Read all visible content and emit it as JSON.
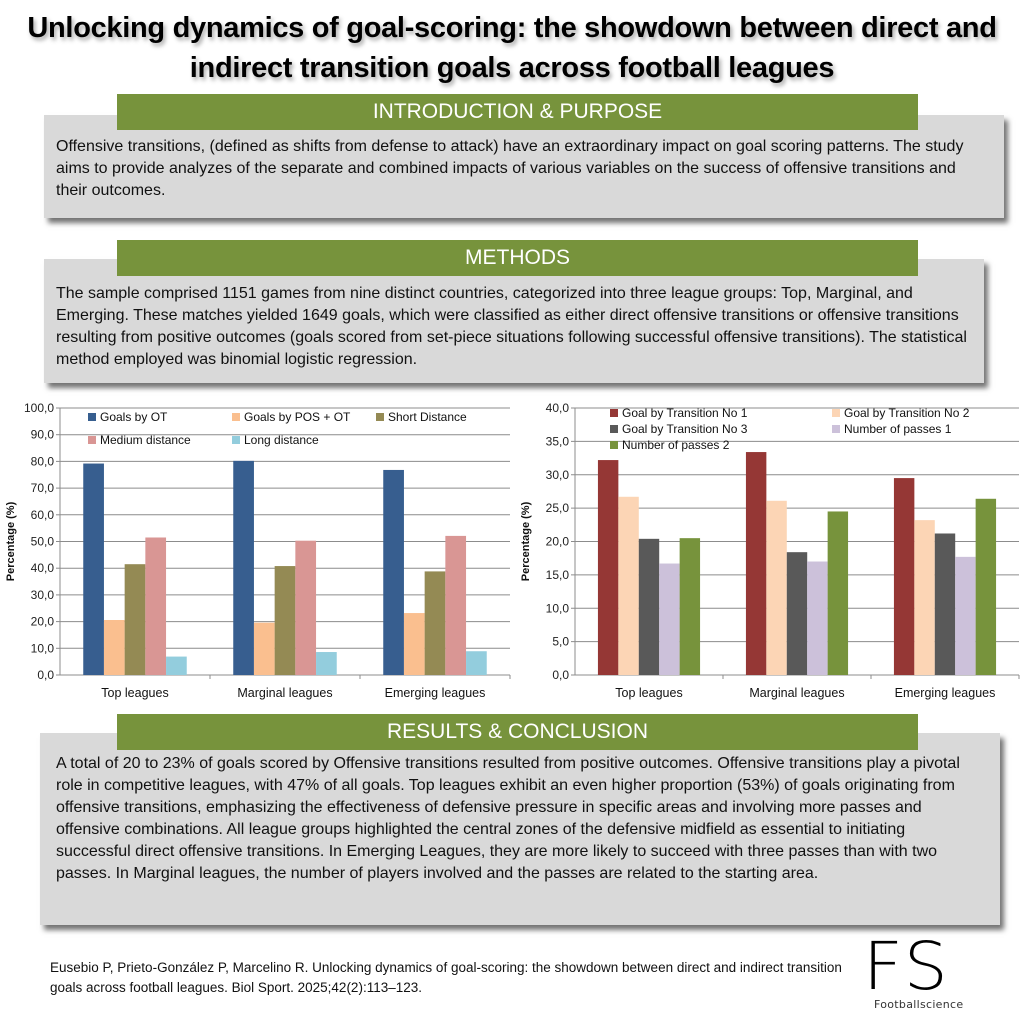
{
  "title": "Unlocking dynamics of goal-scoring: the showdown between direct and indirect transition goals across football leagues",
  "sections": {
    "introduction": {
      "heading": "INTRODUCTION & PURPOSE",
      "text": "Offensive transitions, (defined as shifts from defense to attack) have an extraordinary impact on goal scoring patterns. The study aims to provide analyzes of the separate and combined impacts of various variables on the success of offensive transitions and their outcomes."
    },
    "methods": {
      "heading": "METHODS",
      "text": "The sample comprised 1151 games from nine distinct countries, categorized into three league groups: Top, Marginal, and Emerging. These matches yielded 1649 goals, which were classified as either direct offensive transitions or offensive transitions resulting from positive outcomes (goals scored from set-piece situations following successful offensive transitions). The statistical method employed was binomial logistic regression."
    },
    "results": {
      "heading": "RESULTS & CONCLUSION",
      "text": "A total of 20 to 23% of goals scored by Offensive transitions resulted from positive outcomes. Offensive transitions play a pivotal role in competitive leagues, with 47% of all goals. Top leagues exhibit an even higher proportion (53%) of goals originating from offensive transitions, emphasizing the effectiveness of defensive pressure in specific areas and involving more passes and offensive combinations. All league groups highlighted the central zones of the defensive midfield as essential to initiating successful direct offensive transitions. In Emerging Leagues, they are more likely to succeed with three passes than with two passes. In Marginal leagues, the number of players involved and the passes are related to the starting area."
    }
  },
  "citation": "Eusebio P, Prieto-González P, Marcelino R. Unlocking dynamics of goal-scoring: the showdown between direct and indirect transition goals across football leagues. Biol Sport. 2025;42(2):113–123.",
  "logo": {
    "letters": "FS",
    "subtitle": "Footballscience"
  },
  "colors": {
    "banner": "#77933c",
    "panel": "#d9d9d9"
  },
  "chart_data": [
    {
      "type": "bar",
      "title": "",
      "xlabel": "",
      "ylabel": "Percentage (%)",
      "ylim": [
        0,
        100
      ],
      "yticks": [
        "0,0",
        "10,0",
        "20,0",
        "30,0",
        "40,0",
        "50,0",
        "60,0",
        "70,0",
        "80,0",
        "90,0",
        "100,0"
      ],
      "grid": true,
      "legend_position": "top-inside",
      "categories": [
        "Top leagues",
        "Marginal leagues",
        "Emerging leagues"
      ],
      "series": [
        {
          "name": "Goals by OT",
          "color": "#375e8f",
          "values": [
            79.2,
            80.2,
            76.8
          ]
        },
        {
          "name": "Goals by POS + OT",
          "color": "#fabf8f",
          "values": [
            20.6,
            19.6,
            23.2
          ]
        },
        {
          "name": "Short Distance",
          "color": "#948a54",
          "values": [
            41.5,
            40.8,
            38.8
          ]
        },
        {
          "name": "Medium distance",
          "color": "#d99694",
          "values": [
            51.5,
            50.3,
            52.1
          ]
        },
        {
          "name": "Long distance",
          "color": "#93cddd",
          "values": [
            6.9,
            8.6,
            8.9
          ]
        }
      ]
    },
    {
      "type": "bar",
      "title": "",
      "xlabel": "",
      "ylabel": "Percentage (%)",
      "ylim": [
        0,
        40
      ],
      "yticks": [
        "0,0",
        "5,0",
        "10,0",
        "15,0",
        "20,0",
        "25,0",
        "30,0",
        "35,0",
        "40,0"
      ],
      "grid": true,
      "legend_position": "top-inside",
      "categories": [
        "Top leagues",
        "Marginal leagues",
        "Emerging leagues"
      ],
      "series": [
        {
          "name": "Goal by Transition No 1",
          "color": "#953735",
          "values": [
            32.2,
            33.4,
            29.5
          ]
        },
        {
          "name": "Goal by Transition No 2",
          "color": "#fcd5b5",
          "values": [
            26.7,
            26.1,
            23.2
          ]
        },
        {
          "name": "Goal by Transition No 3",
          "color": "#595959",
          "values": [
            20.4,
            18.4,
            21.2
          ]
        },
        {
          "name": "Number of passes 1",
          "color": "#ccc1da",
          "values": [
            16.7,
            17.0,
            17.7
          ]
        },
        {
          "name": "Number of passes 2",
          "color": "#77933c",
          "values": [
            20.5,
            24.5,
            26.4
          ]
        }
      ]
    }
  ]
}
